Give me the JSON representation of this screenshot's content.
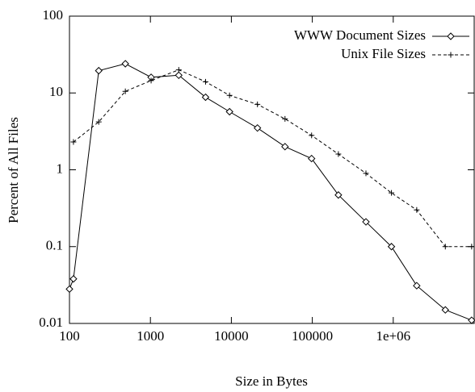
{
  "chart_data": {
    "type": "line",
    "xlabel": "Size in Bytes",
    "ylabel": "Percent of All Files",
    "x": [
      100,
      112,
      230,
      490,
      1020,
      2240,
      4800,
      9500,
      21000,
      46000,
      98000,
      210000,
      460000,
      950000,
      1950000,
      4400000,
      9300000
    ],
    "series": [
      {
        "name": "WWW Document Sizes",
        "color": "#000000",
        "marker": "diamond",
        "dash": false,
        "values": [
          0.028,
          0.038,
          19.5,
          24,
          16,
          17,
          8.8,
          5.7,
          3.5,
          2.0,
          1.4,
          0.47,
          0.21,
          0.1,
          0.031,
          0.015,
          0.011
        ]
      },
      {
        "name": "Unix File Sizes",
        "color": "#000000",
        "marker": "plus",
        "dash": true,
        "values": [
          null,
          2.3,
          4.2,
          10.5,
          14.5,
          20,
          14,
          9.3,
          7.1,
          4.6,
          2.8,
          1.6,
          0.9,
          0.5,
          0.3,
          0.1,
          0.1
        ]
      }
    ],
    "xlog": true,
    "ylog": true,
    "xlim": [
      100,
      10000000
    ],
    "ylim": [
      0.01,
      100
    ],
    "xticks": [
      100,
      1000,
      10000,
      100000,
      {
        "value": 1000000,
        "label": "1e+06"
      }
    ],
    "yticks": [
      0.01,
      0.1,
      1,
      10,
      100
    ],
    "legend": "top-right"
  }
}
